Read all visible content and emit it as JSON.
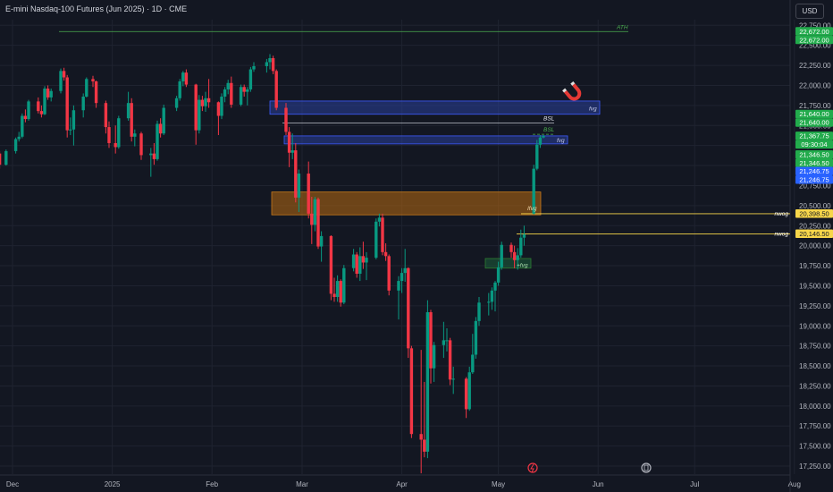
{
  "header": {
    "title": "E-mini Nasdaq-100 Futures (Jun 2025) · 1D · CME",
    "currency": "USD"
  },
  "colors": {
    "background": "#131722",
    "up": "#089981",
    "down": "#f23645",
    "grid": "#1f2330",
    "axis_text": "#b2b5be",
    "ath_line": "#4caf50",
    "fvg_blue": "#2a3f9a",
    "ifvg_orange": "#b86a10",
    "plus_fvg_green": "#1b5e3b",
    "nwog_yellow": "#f7d64a",
    "label_green": "#22ab4c",
    "label_blue": "#2962ff"
  },
  "chart_data": {
    "type": "candlestick",
    "ylim": [
      17150,
      22820
    ],
    "y_ticks": [
      "17,250.00",
      "17,500.00",
      "17,750.00",
      "18,000.00",
      "18,250.00",
      "18,500.00",
      "18,750.00",
      "19,000.00",
      "19,250.00",
      "19,500.00",
      "19,750.00",
      "20,000.00",
      "20,250.00",
      "20,500.00",
      "20,750.00",
      "21,000.00",
      "21,250.00",
      "21,500.00",
      "21,750.00",
      "22,000.00",
      "22,250.00",
      "22,500.00",
      "22,750.00"
    ],
    "y_tick_values": [
      17250,
      17500,
      17750,
      18000,
      18250,
      18500,
      18750,
      19000,
      19250,
      19500,
      19750,
      20000,
      20250,
      20500,
      20750,
      21000,
      21250,
      21500,
      21750,
      22000,
      22250,
      22500,
      22750
    ],
    "x_labels": [
      "Dec",
      "2025",
      "Feb",
      "Mar",
      "Apr",
      "May",
      "Jun",
      "Jul",
      "Aug"
    ],
    "x_label_dates": [
      "2024-12-01",
      "2025-01-01",
      "2025-02-01",
      "2025-03-01",
      "2025-04-01",
      "2025-05-01",
      "2025-06-01",
      "2025-07-01",
      "2025-08-01"
    ],
    "candles": [
      [
        "2024-11-25",
        21050,
        21120,
        20900,
        20980
      ],
      [
        "2024-11-26",
        20980,
        21180,
        20950,
        21150
      ],
      [
        "2024-11-27",
        21150,
        21180,
        20960,
        21010
      ],
      [
        "2024-11-29",
        21010,
        21200,
        21000,
        21180
      ],
      [
        "2024-12-02",
        21180,
        21350,
        21150,
        21330
      ],
      [
        "2024-12-03",
        21330,
        21420,
        21300,
        21360
      ],
      [
        "2024-12-04",
        21360,
        21650,
        21340,
        21620
      ],
      [
        "2024-12-05",
        21620,
        21700,
        21540,
        21580
      ],
      [
        "2024-12-06",
        21580,
        21820,
        21560,
        21800
      ],
      [
        "2024-12-09",
        21800,
        21850,
        21650,
        21680
      ],
      [
        "2024-12-10",
        21680,
        21750,
        21600,
        21640
      ],
      [
        "2024-12-11",
        21640,
        21990,
        21630,
        21960
      ],
      [
        "2024-12-12",
        21960,
        22000,
        21820,
        21850
      ],
      [
        "2024-12-13",
        21850,
        21960,
        21800,
        21930
      ],
      [
        "2024-12-16",
        21930,
        22210,
        21900,
        22180
      ],
      [
        "2024-12-17",
        22180,
        22220,
        22060,
        22100
      ],
      [
        "2024-12-18",
        22100,
        22130,
        21350,
        21440
      ],
      [
        "2024-12-19",
        21440,
        21600,
        21380,
        21450
      ],
      [
        "2024-12-20",
        21450,
        21750,
        21250,
        21690
      ],
      [
        "2024-12-23",
        21690,
        21900,
        21600,
        21860
      ],
      [
        "2024-12-24",
        21860,
        22100,
        21850,
        22080
      ],
      [
        "2024-12-26",
        22080,
        22120,
        21980,
        22050
      ],
      [
        "2024-12-27",
        22050,
        22060,
        21720,
        21780
      ],
      [
        "2024-12-30",
        21780,
        21810,
        21400,
        21480
      ],
      [
        "2024-12-31",
        21480,
        21550,
        21220,
        21280
      ],
      [
        "2025-01-02",
        21280,
        21500,
        21150,
        21230
      ],
      [
        "2025-01-03",
        21230,
        21620,
        21210,
        21590
      ],
      [
        "2025-01-06",
        21590,
        21920,
        21560,
        21780
      ],
      [
        "2025-01-07",
        21780,
        21840,
        21300,
        21360
      ],
      [
        "2025-01-08",
        21360,
        21450,
        21240,
        21400
      ],
      [
        "2025-01-10",
        21400,
        21420,
        21070,
        21130
      ],
      [
        "2025-01-13",
        21130,
        21220,
        20860,
        21150
      ],
      [
        "2025-01-14",
        21150,
        21280,
        21010,
        21080
      ],
      [
        "2025-01-15",
        21080,
        21560,
        21060,
        21520
      ],
      [
        "2025-01-16",
        21520,
        21590,
        21350,
        21400
      ],
      [
        "2025-01-17",
        21400,
        21760,
        21380,
        21720
      ],
      [
        "2025-01-21",
        21720,
        21870,
        21680,
        21840
      ],
      [
        "2025-01-22",
        21840,
        22080,
        21810,
        22050
      ],
      [
        "2025-01-23",
        22050,
        22180,
        21990,
        22160
      ],
      [
        "2025-01-24",
        22160,
        22200,
        21980,
        22010
      ],
      [
        "2025-01-27",
        22010,
        22020,
        21260,
        21440
      ],
      [
        "2025-01-28",
        21440,
        21880,
        21400,
        21820
      ],
      [
        "2025-01-29",
        21820,
        21870,
        21680,
        21740
      ],
      [
        "2025-01-30",
        21740,
        21920,
        21670,
        21840
      ],
      [
        "2025-01-31",
        21840,
        22080,
        21720,
        21790
      ],
      [
        "2025-02-03",
        21790,
        21800,
        21380,
        21620
      ],
      [
        "2025-02-04",
        21620,
        21900,
        21580,
        21860
      ],
      [
        "2025-02-05",
        21860,
        21980,
        21790,
        21950
      ],
      [
        "2025-02-06",
        21950,
        22070,
        21890,
        22030
      ],
      [
        "2025-02-07",
        22030,
        22110,
        21720,
        21760
      ],
      [
        "2025-02-10",
        21760,
        22010,
        21740,
        21980
      ],
      [
        "2025-02-11",
        21980,
        22010,
        21860,
        21920
      ],
      [
        "2025-02-12",
        21920,
        21980,
        21750,
        21950
      ],
      [
        "2025-02-13",
        21950,
        22230,
        21920,
        22200
      ],
      [
        "2025-02-14",
        22200,
        22290,
        22170,
        22240
      ],
      [
        "2025-02-18",
        22240,
        22330,
        22160,
        22290
      ],
      [
        "2025-02-19",
        22290,
        22390,
        22200,
        22340
      ],
      [
        "2025-02-20",
        22340,
        22370,
        22140,
        22180
      ],
      [
        "2025-02-21",
        22180,
        22200,
        21690,
        21720
      ],
      [
        "2025-02-24",
        21720,
        21780,
        21380,
        21420
      ],
      [
        "2025-02-25",
        21420,
        21480,
        20980,
        21160
      ],
      [
        "2025-02-26",
        21160,
        21400,
        21080,
        21190
      ],
      [
        "2025-02-27",
        21190,
        21280,
        20540,
        20600
      ],
      [
        "2025-02-28",
        20600,
        20950,
        20420,
        20900
      ],
      [
        "2025-03-03",
        20900,
        21050,
        20340,
        20400
      ],
      [
        "2025-03-04",
        20400,
        20610,
        20020,
        20260
      ],
      [
        "2025-03-05",
        20260,
        20610,
        20180,
        20580
      ],
      [
        "2025-03-06",
        20580,
        20600,
        19960,
        19990
      ],
      [
        "2025-03-07",
        19990,
        20180,
        19800,
        20120
      ],
      [
        "2025-03-10",
        20120,
        20130,
        19320,
        19400
      ],
      [
        "2025-03-11",
        19400,
        19600,
        19300,
        19360
      ],
      [
        "2025-03-12",
        19360,
        19630,
        19300,
        19560
      ],
      [
        "2025-03-13",
        19560,
        19580,
        19240,
        19290
      ],
      [
        "2025-03-14",
        19290,
        19760,
        19270,
        19720
      ],
      [
        "2025-03-17",
        19720,
        19960,
        19680,
        19890
      ],
      [
        "2025-03-18",
        19890,
        19920,
        19600,
        19650
      ],
      [
        "2025-03-19",
        19650,
        19980,
        19560,
        19870
      ],
      [
        "2025-03-20",
        19870,
        20050,
        19710,
        19790
      ],
      [
        "2025-03-21",
        19790,
        19920,
        19570,
        19850
      ],
      [
        "2025-03-24",
        19850,
        20340,
        19830,
        20300
      ],
      [
        "2025-03-25",
        20300,
        20400,
        20240,
        20350
      ],
      [
        "2025-03-26",
        20350,
        20400,
        19880,
        19920
      ],
      [
        "2025-03-27",
        19920,
        20030,
        19810,
        19870
      ],
      [
        "2025-03-28",
        19870,
        19890,
        19380,
        19440
      ],
      [
        "2025-03-31",
        19440,
        19620,
        19080,
        19560
      ],
      [
        "2025-04-01",
        19560,
        19720,
        19410,
        19660
      ],
      [
        "2025-04-02",
        19660,
        19960,
        19550,
        19720
      ],
      [
        "2025-04-03",
        19720,
        19730,
        18600,
        18720
      ],
      [
        "2025-04-04",
        18720,
        18750,
        17600,
        17650
      ],
      [
        "2025-04-07",
        17650,
        18700,
        17160,
        17580
      ],
      [
        "2025-04-08",
        17580,
        18300,
        17360,
        17430
      ],
      [
        "2025-04-09",
        17430,
        19320,
        17350,
        19170
      ],
      [
        "2025-04-10",
        19170,
        19200,
        18280,
        18470
      ],
      [
        "2025-04-11",
        18470,
        18800,
        18300,
        18760
      ],
      [
        "2025-04-14",
        18760,
        19050,
        18600,
        18820
      ],
      [
        "2025-04-15",
        18820,
        18970,
        18680,
        18820
      ],
      [
        "2025-04-16",
        18820,
        18850,
        18260,
        18330
      ],
      [
        "2025-04-17",
        18330,
        18490,
        18150,
        18340
      ],
      [
        "2025-04-21",
        18340,
        18360,
        17850,
        17960
      ],
      [
        "2025-04-22",
        17960,
        18490,
        17940,
        18420
      ],
      [
        "2025-04-23",
        18420,
        18900,
        18400,
        18640
      ],
      [
        "2025-04-24",
        18640,
        19110,
        18590,
        19060
      ],
      [
        "2025-04-25",
        19060,
        19360,
        19000,
        19290
      ],
      [
        "2025-04-28",
        19290,
        19410,
        19130,
        19300
      ],
      [
        "2025-04-29",
        19300,
        19480,
        19200,
        19440
      ],
      [
        "2025-04-30",
        19440,
        19560,
        19180,
        19540
      ],
      [
        "2025-05-01",
        19540,
        19800,
        19500,
        19730
      ],
      [
        "2025-05-02",
        19730,
        20050,
        19700,
        20010
      ],
      [
        "2025-05-05",
        20010,
        20040,
        19850,
        19920
      ],
      [
        "2025-05-06",
        19920,
        20000,
        19720,
        19820
      ],
      [
        "2025-05-07",
        19820,
        19970,
        19700,
        19880
      ],
      [
        "2025-05-08",
        19880,
        20200,
        19850,
        20100
      ],
      [
        "2025-05-09",
        20100,
        20250,
        20000,
        20140
      ],
      [
        "2025-05-12",
        20400,
        21010,
        20390,
        20960
      ],
      [
        "2025-05-13",
        20960,
        21320,
        20940,
        21260
      ],
      [
        "2025-05-14",
        21260,
        21380,
        21220,
        21350
      ],
      [
        "2025-05-15",
        21350,
        21380,
        21340,
        21367.75
      ]
    ],
    "labels": {
      "ath": "ATH",
      "bsl1": "BSL",
      "bsl2": "BSL",
      "fvg1": "fvg",
      "fvg2": "fvg",
      "ifvg": "Ifvg",
      "plus_fvg": "+fvg",
      "nwog1": "nwog",
      "nwog2": "nwog"
    },
    "levels": {
      "ath": 22672.0,
      "bsl1": 21530,
      "bsl2": 21390,
      "fvg1": [
        21640,
        21805
      ],
      "fvg2": [
        21270,
        21370
      ],
      "ifvg": [
        20385,
        20670
      ],
      "plus_fvg": [
        19720,
        19840
      ],
      "nwog1": 20398.5,
      "nwog2": 20146.5
    },
    "price_labels": [
      {
        "text": "22,672.00",
        "value": 22672.0,
        "color": "#22ab4c"
      },
      {
        "text": "22,672.00",
        "value": 22672.0,
        "color": "#22ab4c",
        "offset": 1
      },
      {
        "text": "21,640.00",
        "value": 21640.0,
        "color": "#22ab4c"
      },
      {
        "text": "21,640.00",
        "value": 21640.0,
        "color": "#22ab4c",
        "offset": 1
      },
      {
        "text": "21,367.75",
        "value": 21367.75,
        "color": "#22ab4c"
      },
      {
        "text": "09:30:04",
        "value": 21367.75,
        "color": "#22ab4c",
        "offset": 1
      },
      {
        "text": "21,346.50",
        "value": 21346.5,
        "color": "#22ab4c",
        "offset": 2
      },
      {
        "text": "21,346.50",
        "value": 21346.5,
        "color": "#22ab4c",
        "offset": 3
      },
      {
        "text": "21,246.75",
        "value": 21246.75,
        "color": "#2962ff",
        "offset": 3
      },
      {
        "text": "21,246.75",
        "value": 21246.75,
        "color": "#2962ff",
        "offset": 4
      },
      {
        "text": "20,398.50",
        "value": 20398.5,
        "color": "#f7d64a"
      },
      {
        "text": "20,146.50",
        "value": 20146.5,
        "color": "#f7d64a"
      }
    ]
  }
}
